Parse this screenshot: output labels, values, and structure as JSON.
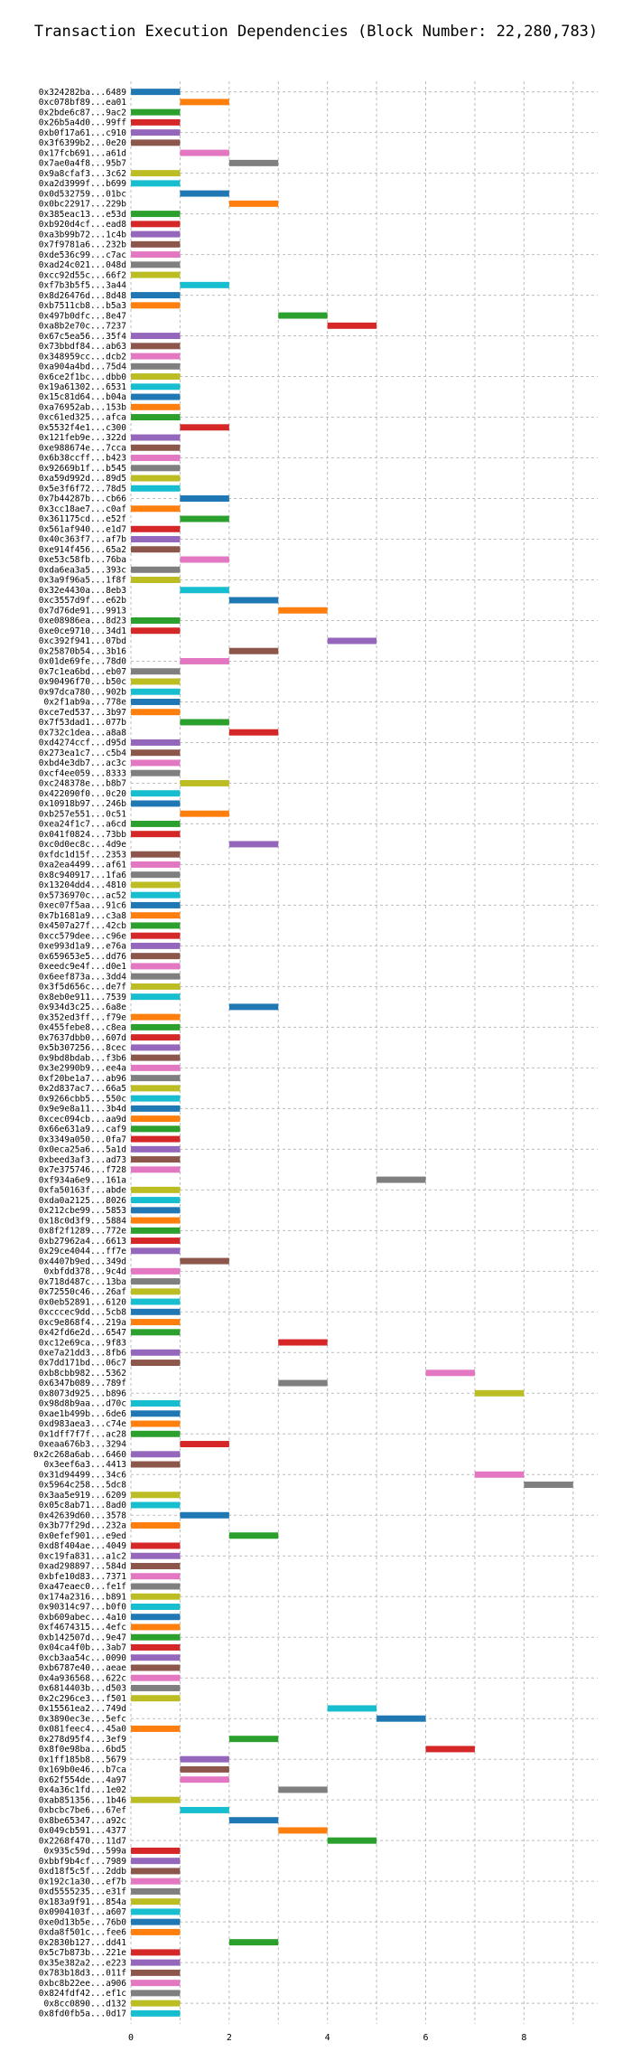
{
  "chart_data": {
    "type": "bar",
    "orientation": "horizontal-gantt",
    "title": "Transaction Execution Dependencies (Block Number: 22,280,783)",
    "xlabel": "",
    "ylabel": "",
    "xlim": [
      0,
      9.5
    ],
    "xticks": [
      0,
      2,
      4,
      6,
      8
    ],
    "grid": true,
    "palette": [
      "#1f77b4",
      "#ff7f0e",
      "#2ca02c",
      "#d62728",
      "#9467bd",
      "#8c564b",
      "#e377c2",
      "#7f7f7f",
      "#bcbd22",
      "#17becf"
    ],
    "transactions": [
      {
        "tx": "0x324282ba...6489",
        "start": 0,
        "end": 1
      },
      {
        "tx": "0xc078bf89...ea01",
        "start": 1,
        "end": 2
      },
      {
        "tx": "0x2bde6c87...9ac2",
        "start": 0,
        "end": 1
      },
      {
        "tx": "0x26b5a4d0...99ff",
        "start": 0,
        "end": 1
      },
      {
        "tx": "0xb0f17a61...c910",
        "start": 0,
        "end": 1
      },
      {
        "tx": "0x3f6399b2...0e20",
        "start": 0,
        "end": 1
      },
      {
        "tx": "0x17fcb691...a61d",
        "start": 1,
        "end": 2
      },
      {
        "tx": "0x7ae0a4f8...95b7",
        "start": 2,
        "end": 3
      },
      {
        "tx": "0x9a8cfaf3...3c62",
        "start": 0,
        "end": 1
      },
      {
        "tx": "0xa2d3999f...b699",
        "start": 0,
        "end": 1
      },
      {
        "tx": "0x0d532759...01bc",
        "start": 1,
        "end": 2
      },
      {
        "tx": "0x0bc22917...229b",
        "start": 2,
        "end": 3
      },
      {
        "tx": "0x385eac13...e53d",
        "start": 0,
        "end": 1
      },
      {
        "tx": "0xb920d4cf...ead8",
        "start": 0,
        "end": 1
      },
      {
        "tx": "0xa3b99b72...1c4b",
        "start": 0,
        "end": 1
      },
      {
        "tx": "0x7f9781a6...232b",
        "start": 0,
        "end": 1
      },
      {
        "tx": "0xde536c99...c7ac",
        "start": 0,
        "end": 1
      },
      {
        "tx": "0xad24c021...048d",
        "start": 0,
        "end": 1
      },
      {
        "tx": "0xcc92d55c...66f2",
        "start": 0,
        "end": 1
      },
      {
        "tx": "0xf7b3b5f5...3a44",
        "start": 1,
        "end": 2
      },
      {
        "tx": "0x8d26476d...8d48",
        "start": 0,
        "end": 1
      },
      {
        "tx": "0xb7511cb8...b5a3",
        "start": 0,
        "end": 1
      },
      {
        "tx": "0x497b0dfc...8e47",
        "start": 3,
        "end": 4
      },
      {
        "tx": "0xa8b2e70c...7237",
        "start": 4,
        "end": 5
      },
      {
        "tx": "0x67c5ea56...35f4",
        "start": 0,
        "end": 1
      },
      {
        "tx": "0x73bbdf84...ab63",
        "start": 0,
        "end": 1
      },
      {
        "tx": "0x348959cc...dcb2",
        "start": 0,
        "end": 1
      },
      {
        "tx": "0xa904a4bd...75d4",
        "start": 0,
        "end": 1
      },
      {
        "tx": "0x6ce2f1bc...dbb0",
        "start": 0,
        "end": 1
      },
      {
        "tx": "0x19a61302...6531",
        "start": 0,
        "end": 1
      },
      {
        "tx": "0x15c81d64...b04a",
        "start": 0,
        "end": 1
      },
      {
        "tx": "0xa76952ab...153b",
        "start": 0,
        "end": 1
      },
      {
        "tx": "0xc61ed325...afca",
        "start": 0,
        "end": 1
      },
      {
        "tx": "0x5532f4e1...c300",
        "start": 1,
        "end": 2
      },
      {
        "tx": "0x121feb9e...322d",
        "start": 0,
        "end": 1
      },
      {
        "tx": "0xe988674e...7cca",
        "start": 0,
        "end": 1
      },
      {
        "tx": "0x6b38ccff...b423",
        "start": 0,
        "end": 1
      },
      {
        "tx": "0x92669b1f...b545",
        "start": 0,
        "end": 1
      },
      {
        "tx": "0xa59d992d...89d5",
        "start": 0,
        "end": 1
      },
      {
        "tx": "0x5e3f6f72...78d5",
        "start": 0,
        "end": 1
      },
      {
        "tx": "0x7b44287b...cb66",
        "start": 1,
        "end": 2
      },
      {
        "tx": "0x3cc18ae7...c0af",
        "start": 0,
        "end": 1
      },
      {
        "tx": "0x361175cd...e52f",
        "start": 1,
        "end": 2
      },
      {
        "tx": "0x561af940...e1d7",
        "start": 0,
        "end": 1
      },
      {
        "tx": "0x40c363f7...af7b",
        "start": 0,
        "end": 1
      },
      {
        "tx": "0xe914f456...65a2",
        "start": 0,
        "end": 1
      },
      {
        "tx": "0xe53c58fb...76ba",
        "start": 1,
        "end": 2
      },
      {
        "tx": "0xda6ea3a5...393c",
        "start": 0,
        "end": 1
      },
      {
        "tx": "0x3a9f96a5...1f8f",
        "start": 0,
        "end": 1
      },
      {
        "tx": "0x32e4430a...8eb3",
        "start": 1,
        "end": 2
      },
      {
        "tx": "0xc3557d9f...e62b",
        "start": 2,
        "end": 3
      },
      {
        "tx": "0x7d76de91...9913",
        "start": 3,
        "end": 4
      },
      {
        "tx": "0xe08986ea...8d23",
        "start": 0,
        "end": 1
      },
      {
        "tx": "0xe0ce9710...34d1",
        "start": 0,
        "end": 1
      },
      {
        "tx": "0xc392f941...07bd",
        "start": 4,
        "end": 5
      },
      {
        "tx": "0x25870b54...3b16",
        "start": 2,
        "end": 3
      },
      {
        "tx": "0x01de69fe...78d0",
        "start": 1,
        "end": 2
      },
      {
        "tx": "0x7c1ea6bd...eb07",
        "start": 0,
        "end": 1
      },
      {
        "tx": "0x90496f70...b50c",
        "start": 0,
        "end": 1
      },
      {
        "tx": "0x97dca780...902b",
        "start": 0,
        "end": 1
      },
      {
        "tx": "0x2f1ab9a...778e",
        "start": 0,
        "end": 1
      },
      {
        "tx": "0xce7ed537...3b97",
        "start": 0,
        "end": 1
      },
      {
        "tx": "0x7f53dad1...077b",
        "start": 1,
        "end": 2
      },
      {
        "tx": "0x732c1dea...a8a8",
        "start": 2,
        "end": 3
      },
      {
        "tx": "0xd4274ccf...d95d",
        "start": 0,
        "end": 1
      },
      {
        "tx": "0x273ea1c7...c5b4",
        "start": 0,
        "end": 1
      },
      {
        "tx": "0xbd4e3db7...ac3c",
        "start": 0,
        "end": 1
      },
      {
        "tx": "0xcf4ee059...8333",
        "start": 0,
        "end": 1
      },
      {
        "tx": "0xc248378e...b8b7",
        "start": 1,
        "end": 2
      },
      {
        "tx": "0x422090f0...0c20",
        "start": 0,
        "end": 1
      },
      {
        "tx": "0x10918b97...246b",
        "start": 0,
        "end": 1
      },
      {
        "tx": "0xb257e551...0c51",
        "start": 1,
        "end": 2
      },
      {
        "tx": "0xea24f1c7...a6cd",
        "start": 0,
        "end": 1
      },
      {
        "tx": "0x041f0824...73bb",
        "start": 0,
        "end": 1
      },
      {
        "tx": "0xc0d0ec8c...4d9e",
        "start": 2,
        "end": 3
      },
      {
        "tx": "0xfdc1d15f...2353",
        "start": 0,
        "end": 1
      },
      {
        "tx": "0xa2ea4499...af61",
        "start": 0,
        "end": 1
      },
      {
        "tx": "0x8c940917...1fa6",
        "start": 0,
        "end": 1
      },
      {
        "tx": "0x13204dd4...4810",
        "start": 0,
        "end": 1
      },
      {
        "tx": "0x5736970c...ac52",
        "start": 0,
        "end": 1
      },
      {
        "tx": "0xec07f5aa...91c6",
        "start": 0,
        "end": 1
      },
      {
        "tx": "0x7b1681a9...c3a8",
        "start": 0,
        "end": 1
      },
      {
        "tx": "0x4507a27f...42cb",
        "start": 0,
        "end": 1
      },
      {
        "tx": "0xcc579dee...c96e",
        "start": 0,
        "end": 1
      },
      {
        "tx": "0xe993d1a9...e76a",
        "start": 0,
        "end": 1
      },
      {
        "tx": "0x659653e5...dd76",
        "start": 0,
        "end": 1
      },
      {
        "tx": "0xeedc9e4f...d0e1",
        "start": 0,
        "end": 1
      },
      {
        "tx": "0x6eef873a...3dd4",
        "start": 0,
        "end": 1
      },
      {
        "tx": "0x3f5d656c...de7f",
        "start": 0,
        "end": 1
      },
      {
        "tx": "0x8eb0e911...7539",
        "start": 0,
        "end": 1
      },
      {
        "tx": "0x934d3c25...6a8e",
        "start": 2,
        "end": 3
      },
      {
        "tx": "0x352ed3ff...f79e",
        "start": 0,
        "end": 1
      },
      {
        "tx": "0x455febe8...c8ea",
        "start": 0,
        "end": 1
      },
      {
        "tx": "0x7637dbb0...607d",
        "start": 0,
        "end": 1
      },
      {
        "tx": "0x5b307256...8cec",
        "start": 0,
        "end": 1
      },
      {
        "tx": "0x9bd8bdab...f3b6",
        "start": 0,
        "end": 1
      },
      {
        "tx": "0x3e2990b9...ee4a",
        "start": 0,
        "end": 1
      },
      {
        "tx": "0xf20be1a7...ab96",
        "start": 0,
        "end": 1
      },
      {
        "tx": "0x2d837ac7...66a5",
        "start": 0,
        "end": 1
      },
      {
        "tx": "0x9266cbb5...550c",
        "start": 0,
        "end": 1
      },
      {
        "tx": "0x9e9e8a11...3b4d",
        "start": 0,
        "end": 1
      },
      {
        "tx": "0xcec094cb...aa9d",
        "start": 0,
        "end": 1
      },
      {
        "tx": "0x66e631a9...caf9",
        "start": 0,
        "end": 1
      },
      {
        "tx": "0x3349a050...0fa7",
        "start": 0,
        "end": 1
      },
      {
        "tx": "0x0eca25a6...5a1d",
        "start": 0,
        "end": 1
      },
      {
        "tx": "0xbeed3af3...ad73",
        "start": 0,
        "end": 1
      },
      {
        "tx": "0x7e375746...f728",
        "start": 0,
        "end": 1
      },
      {
        "tx": "0xf934a6e9...161a",
        "start": 5,
        "end": 6
      },
      {
        "tx": "0xfa50163f...abde",
        "start": 0,
        "end": 1
      },
      {
        "tx": "0xda0a2125...8026",
        "start": 0,
        "end": 1
      },
      {
        "tx": "0x212cbe99...5853",
        "start": 0,
        "end": 1
      },
      {
        "tx": "0x18c0d3f9...5884",
        "start": 0,
        "end": 1
      },
      {
        "tx": "0x8f2f1289...772e",
        "start": 0,
        "end": 1
      },
      {
        "tx": "0xb27962a4...6613",
        "start": 0,
        "end": 1
      },
      {
        "tx": "0x29ce4044...ff7e",
        "start": 0,
        "end": 1
      },
      {
        "tx": "0x4407b9ed...349d",
        "start": 1,
        "end": 2
      },
      {
        "tx": "0xbfdd378...9c4d",
        "start": 0,
        "end": 1
      },
      {
        "tx": "0x718d487c...13ba",
        "start": 0,
        "end": 1
      },
      {
        "tx": "0x72550c46...26af",
        "start": 0,
        "end": 1
      },
      {
        "tx": "0x0eb52891...6120",
        "start": 0,
        "end": 1
      },
      {
        "tx": "0xcccec9dd...5cb8",
        "start": 0,
        "end": 1
      },
      {
        "tx": "0xc9e868f4...219a",
        "start": 0,
        "end": 1
      },
      {
        "tx": "0x42fd6e2d...6547",
        "start": 0,
        "end": 1
      },
      {
        "tx": "0xc12e69ca...9f83",
        "start": 3,
        "end": 4
      },
      {
        "tx": "0xe7a21dd3...8fb6",
        "start": 0,
        "end": 1
      },
      {
        "tx": "0x7dd171bd...06c7",
        "start": 0,
        "end": 1
      },
      {
        "tx": "0xb8cbb982...5362",
        "start": 6,
        "end": 7
      },
      {
        "tx": "0x6347b089...789f",
        "start": 3,
        "end": 4
      },
      {
        "tx": "0x8073d925...b896",
        "start": 7,
        "end": 8
      },
      {
        "tx": "0x98d8b9aa...d70c",
        "start": 0,
        "end": 1
      },
      {
        "tx": "0xae1b499b...6de6",
        "start": 0,
        "end": 1
      },
      {
        "tx": "0xd983aea3...c74e",
        "start": 0,
        "end": 1
      },
      {
        "tx": "0x1dff7f7f...ac28",
        "start": 0,
        "end": 1
      },
      {
        "tx": "0xeaa676b3...3294",
        "start": 1,
        "end": 2
      },
      {
        "tx": "0x2c268a6ab...6460",
        "start": 0,
        "end": 1
      },
      {
        "tx": "0x3eef6a3...4413",
        "start": 0,
        "end": 1
      },
      {
        "tx": "0x31d94499...34c6",
        "start": 7,
        "end": 8
      },
      {
        "tx": "0x5964c258...5dc8",
        "start": 8,
        "end": 9
      },
      {
        "tx": "0x3aa5e919...6209",
        "start": 0,
        "end": 1
      },
      {
        "tx": "0x05c8ab71...8ad0",
        "start": 0,
        "end": 1
      },
      {
        "tx": "0x42639d60...3578",
        "start": 1,
        "end": 2
      },
      {
        "tx": "0x3b77f29d...232a",
        "start": 0,
        "end": 1
      },
      {
        "tx": "0x0efef901...e9ed",
        "start": 2,
        "end": 3
      },
      {
        "tx": "0xd8f404ae...4049",
        "start": 0,
        "end": 1
      },
      {
        "tx": "0xc19fa831...a1c2",
        "start": 0,
        "end": 1
      },
      {
        "tx": "0xad298897...584d",
        "start": 0,
        "end": 1
      },
      {
        "tx": "0xbfe10d83...7371",
        "start": 0,
        "end": 1
      },
      {
        "tx": "0xa47eaec0...fe1f",
        "start": 0,
        "end": 1
      },
      {
        "tx": "0x174a2316...b891",
        "start": 0,
        "end": 1
      },
      {
        "tx": "0x90314c97...b0f0",
        "start": 0,
        "end": 1
      },
      {
        "tx": "0xb609abec...4a10",
        "start": 0,
        "end": 1
      },
      {
        "tx": "0xf4674315...4efc",
        "start": 0,
        "end": 1
      },
      {
        "tx": "0xb142507d...9e47",
        "start": 0,
        "end": 1
      },
      {
        "tx": "0x04ca4f0b...3ab7",
        "start": 0,
        "end": 1
      },
      {
        "tx": "0xcb3aa54c...0090",
        "start": 0,
        "end": 1
      },
      {
        "tx": "0xb6787e40...aeae",
        "start": 0,
        "end": 1
      },
      {
        "tx": "0x4a936568...622c",
        "start": 0,
        "end": 1
      },
      {
        "tx": "0x6814403b...d503",
        "start": 0,
        "end": 1
      },
      {
        "tx": "0x2c296ce3...f501",
        "start": 0,
        "end": 1
      },
      {
        "tx": "0x15561ea2...749d",
        "start": 4,
        "end": 5
      },
      {
        "tx": "0x3890ec3e...5efc",
        "start": 5,
        "end": 6
      },
      {
        "tx": "0x081feec4...45a0",
        "start": 0,
        "end": 1
      },
      {
        "tx": "0x278d95f4...3ef9",
        "start": 2,
        "end": 3
      },
      {
        "tx": "0x8f0e98ba...6bd5",
        "start": 6,
        "end": 7
      },
      {
        "tx": "0x1ff185b8...5679",
        "start": 1,
        "end": 2
      },
      {
        "tx": "0x169b0e46...b7ca",
        "start": 1,
        "end": 2
      },
      {
        "tx": "0x62f554de...4a97",
        "start": 1,
        "end": 2
      },
      {
        "tx": "0x4a36c1fd...1e02",
        "start": 3,
        "end": 4
      },
      {
        "tx": "0xab851356...1b46",
        "start": 0,
        "end": 1
      },
      {
        "tx": "0xbcbc7be6...67ef",
        "start": 1,
        "end": 2
      },
      {
        "tx": "0x8be65347...a92c",
        "start": 2,
        "end": 3
      },
      {
        "tx": "0x049cb591...4377",
        "start": 3,
        "end": 4
      },
      {
        "tx": "0x2268f470...11d7",
        "start": 4,
        "end": 5
      },
      {
        "tx": "0x935c59d...599a",
        "start": 0,
        "end": 1
      },
      {
        "tx": "0xbbf9b4cf...7989",
        "start": 0,
        "end": 1
      },
      {
        "tx": "0xd18f5c5f...2ddb",
        "start": 0,
        "end": 1
      },
      {
        "tx": "0x192c1a30...ef7b",
        "start": 0,
        "end": 1
      },
      {
        "tx": "0xd5555235...e31f",
        "start": 0,
        "end": 1
      },
      {
        "tx": "0x183a9f91...854a",
        "start": 0,
        "end": 1
      },
      {
        "tx": "0x0904103f...a607",
        "start": 0,
        "end": 1
      },
      {
        "tx": "0xe0d13b5e...76b0",
        "start": 0,
        "end": 1
      },
      {
        "tx": "0xda8f501c...fee6",
        "start": 0,
        "end": 1
      },
      {
        "tx": "0x2830b127...dd41",
        "start": 2,
        "end": 3
      },
      {
        "tx": "0x5c7b873b...221e",
        "start": 0,
        "end": 1
      },
      {
        "tx": "0x35e382a2...e223",
        "start": 0,
        "end": 1
      },
      {
        "tx": "0x783b18d3...011f",
        "start": 0,
        "end": 1
      },
      {
        "tx": "0xbc8b22ee...a906",
        "start": 0,
        "end": 1
      },
      {
        "tx": "0x824fdf42...ef1c",
        "start": 0,
        "end": 1
      },
      {
        "tx": "0x8cc0890...d132",
        "start": 0,
        "end": 1
      },
      {
        "tx": "0x8fd0fb5a...0d17",
        "start": 0,
        "end": 1
      }
    ]
  }
}
